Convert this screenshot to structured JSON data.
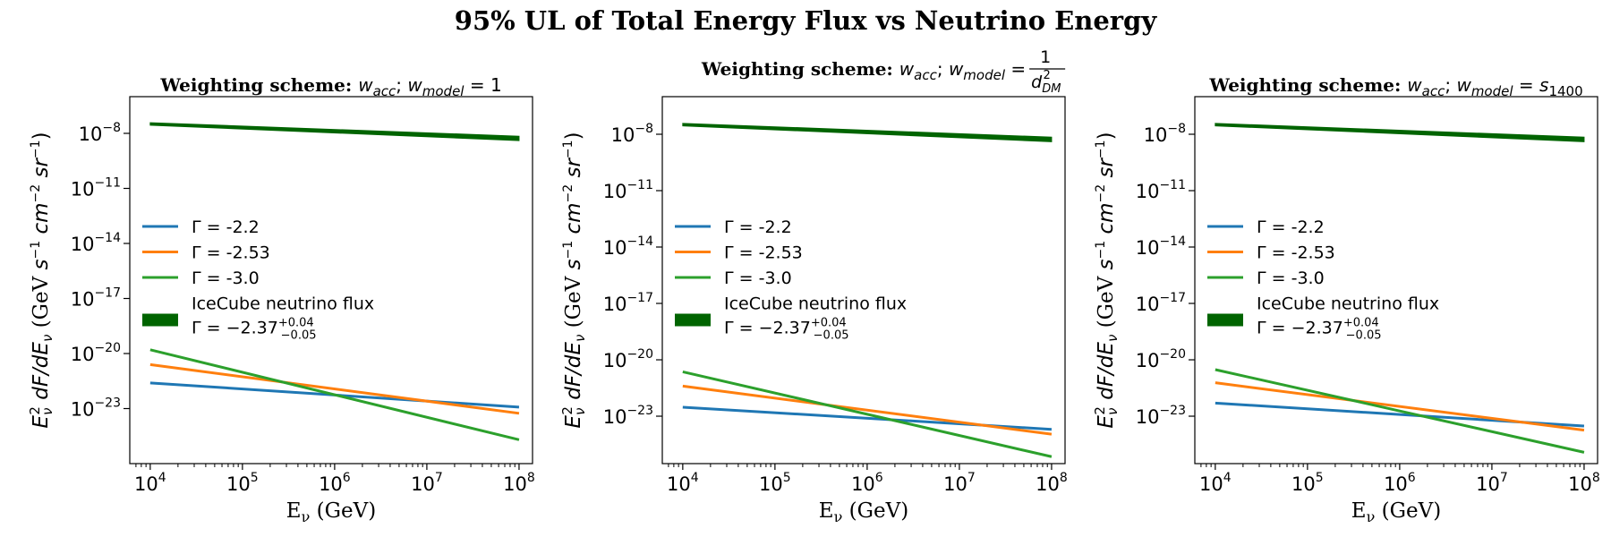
{
  "figure": {
    "suptitle": "95% UL of Total Energy Flux vs Neutrino Energy"
  },
  "chart_data": [
    {
      "type": "line",
      "title_prefix": "Weighting scheme:",
      "title_math": "w_acc; w_model = 1",
      "xlabel": "E_ν (GeV)",
      "ylabel": "E_ν^2 dF/dE_ν (GeV s^-1 cm^-2 sr^-1)",
      "xscale": "log",
      "yscale": "log",
      "xlim": [
        6000.0,
        140000000.0
      ],
      "ylim": [
        1e-26,
        1e-06
      ],
      "x_tick_exponents": [
        4,
        5,
        6,
        7,
        8
      ],
      "y_tick_exponents": [
        -8,
        -11,
        -14,
        -17,
        -20,
        -23
      ],
      "x": [
        10000.0,
        100000000.0
      ],
      "series": [
        {
          "name": "Γ = -2.2",
          "color": "#1f77b4",
          "values": [
            2.5e-22,
            1.2e-23
          ]
        },
        {
          "name": "Γ = -2.53",
          "color": "#ff7f0e",
          "values": [
            2.5e-21,
            5.5e-24
          ]
        },
        {
          "name": "Γ = -3.0",
          "color": "#2ca02c",
          "values": [
            1.6e-20,
            2e-25
          ]
        }
      ],
      "band": {
        "name": "IceCube neutrino flux",
        "label_math": "Γ = −2.37 (+0.04 / −0.05)",
        "color": "#006400",
        "lower": [
          2.8e-08,
          4e-09
        ],
        "upper": [
          3.8e-08,
          7e-09
        ]
      },
      "legend_loc": "center-left",
      "grid": false
    },
    {
      "type": "line",
      "title_prefix": "Weighting scheme:",
      "title_math": "w_acc; w_model = 1/d_DM^2",
      "xlabel": "E_ν (GeV)",
      "ylabel": "E_ν^2 dF/dE_ν (GeV s^-1 cm^-2 sr^-1)",
      "xscale": "log",
      "yscale": "log",
      "xlim": [
        6000.0,
        140000000.0
      ],
      "ylim": [
        3e-26,
        1e-06
      ],
      "x_tick_exponents": [
        4,
        5,
        6,
        7,
        8
      ],
      "y_tick_exponents": [
        -8,
        -11,
        -14,
        -17,
        -20,
        -23
      ],
      "x": [
        10000.0,
        100000000.0
      ],
      "series": [
        {
          "name": "Γ = -2.2",
          "color": "#1f77b4",
          "values": [
            3e-23,
            2e-24
          ]
        },
        {
          "name": "Γ = -2.53",
          "color": "#ff7f0e",
          "values": [
            4e-22,
            1.1e-24
          ]
        },
        {
          "name": "Γ = -3.0",
          "color": "#2ca02c",
          "values": [
            2.3e-21,
            7e-26
          ]
        }
      ],
      "band": {
        "name": "IceCube neutrino flux",
        "label_math": "Γ = −2.37 (+0.04 / −0.05)",
        "color": "#006400",
        "lower": [
          2.8e-08,
          4e-09
        ],
        "upper": [
          3.8e-08,
          7e-09
        ]
      },
      "legend_loc": "center-left",
      "grid": false
    },
    {
      "type": "line",
      "title_prefix": "Weighting scheme:",
      "title_math": "w_acc; w_model = s_1400",
      "xlabel": "E_ν (GeV)",
      "ylabel": "E_ν^2 dF/dE_ν (GeV s^-1 cm^-2 sr^-1)",
      "xscale": "log",
      "yscale": "log",
      "xlim": [
        6000.0,
        140000000.0
      ],
      "ylim": [
        3e-26,
        1e-06
      ],
      "x_tick_exponents": [
        4,
        5,
        6,
        7,
        8
      ],
      "y_tick_exponents": [
        -8,
        -11,
        -14,
        -17,
        -20,
        -23
      ],
      "x": [
        10000.0,
        100000000.0
      ],
      "series": [
        {
          "name": "Γ = -2.2",
          "color": "#1f77b4",
          "values": [
            5e-23,
            3e-24
          ]
        },
        {
          "name": "Γ = -2.53",
          "color": "#ff7f0e",
          "values": [
            6e-22,
            1.8e-24
          ]
        },
        {
          "name": "Γ = -3.0",
          "color": "#2ca02c",
          "values": [
            3e-21,
            1.2e-25
          ]
        }
      ],
      "band": {
        "name": "IceCube neutrino flux",
        "label_math": "Γ = −2.37 (+0.04 / −0.05)",
        "color": "#006400",
        "lower": [
          2.8e-08,
          4e-09
        ],
        "upper": [
          3.8e-08,
          7e-09
        ]
      },
      "legend_loc": "center-left",
      "grid": false
    }
  ]
}
